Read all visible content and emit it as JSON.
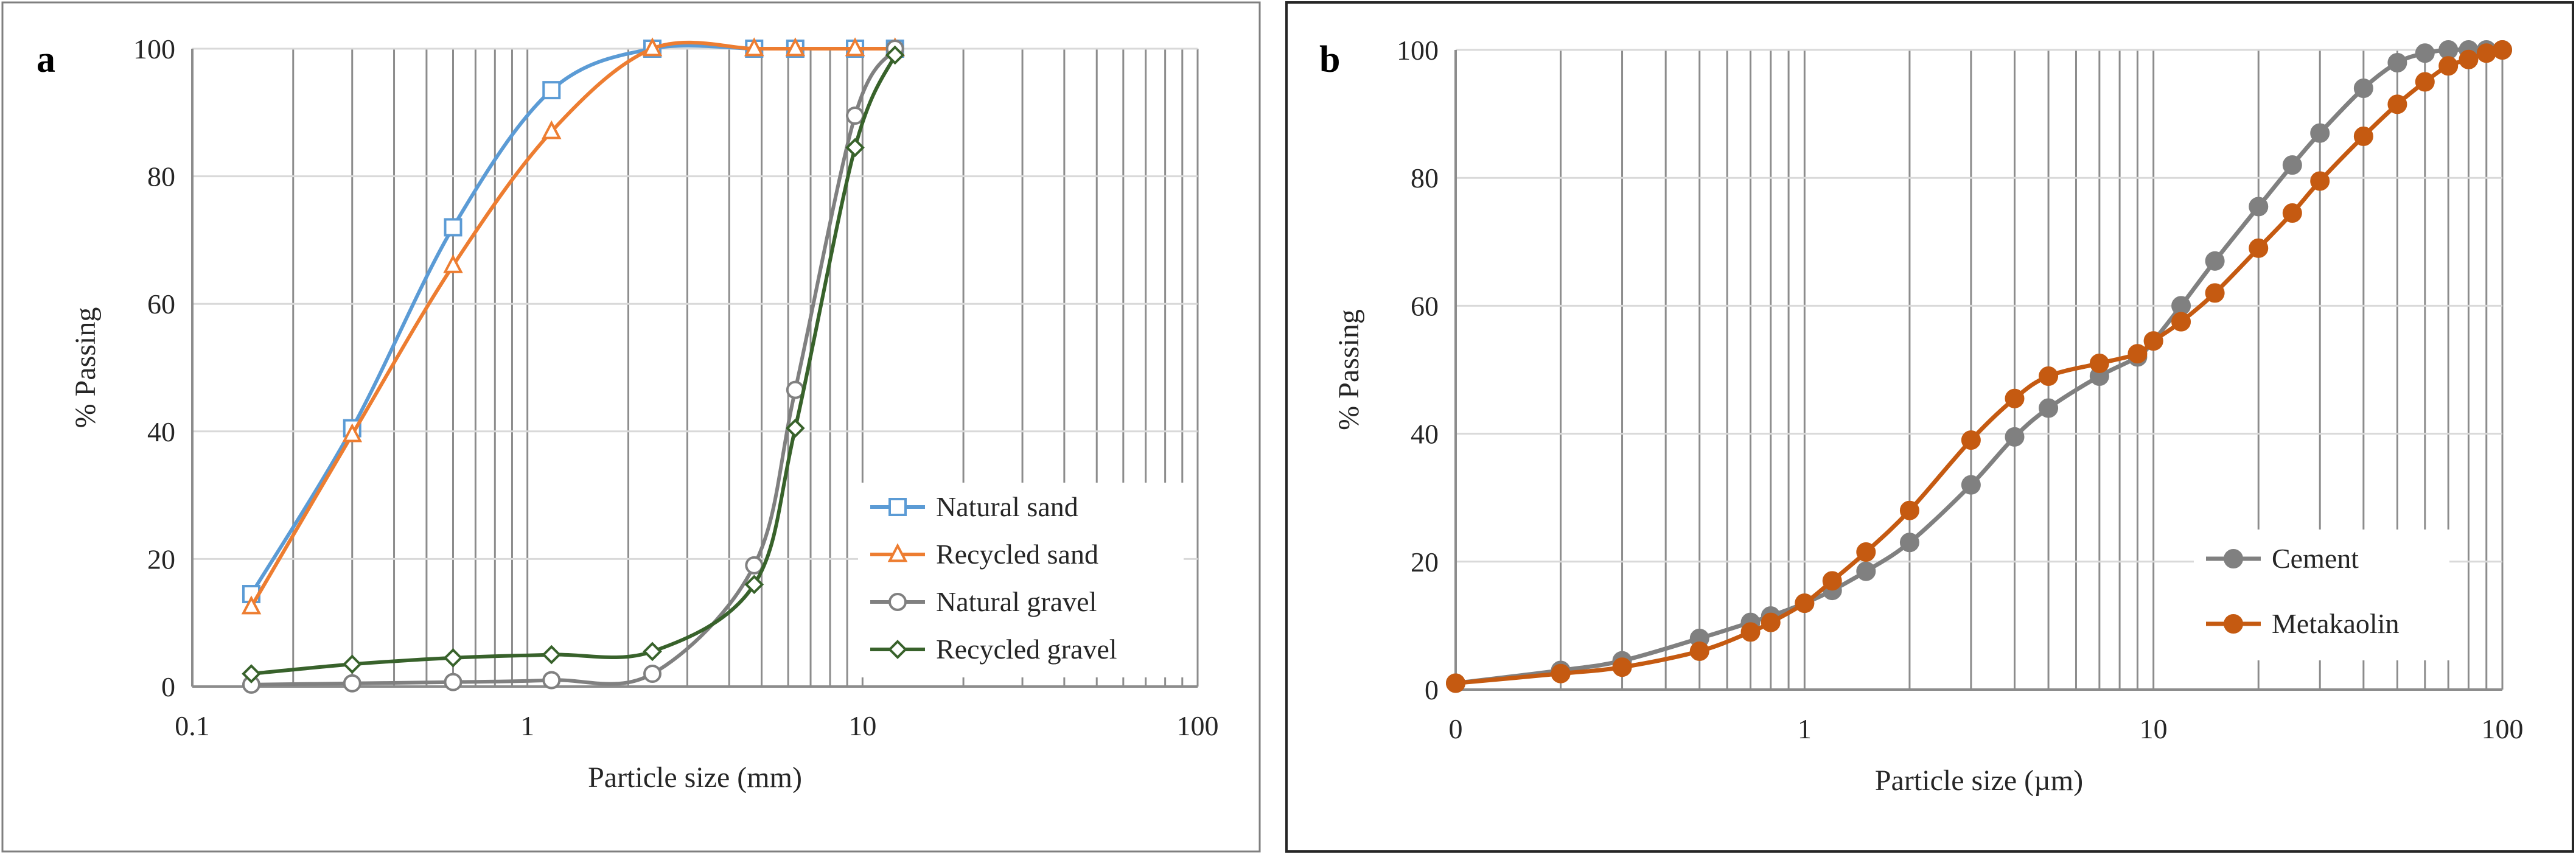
{
  "figure": {
    "panels": [
      {
        "label": "a",
        "legend_position": "bottom-right",
        "grid": true
      },
      {
        "label": "b",
        "legend_position": "bottom-right",
        "grid": true
      }
    ]
  },
  "chart_data": [
    {
      "type": "line",
      "panel": "a",
      "xscale": "log",
      "xlabel": "Particle size (mm)",
      "ylabel": "% Passing",
      "xlim": [
        0.1,
        100
      ],
      "ylim": [
        0,
        100
      ],
      "xticks": [
        0.1,
        1,
        10,
        100
      ],
      "xtick_labels": [
        "0.1",
        "1",
        "10",
        "100"
      ],
      "yticks": [
        0,
        20,
        40,
        60,
        80,
        100
      ],
      "ytick_labels": [
        "0",
        "20",
        "40",
        "60",
        "80",
        "100"
      ],
      "series": [
        {
          "name": "Natural sand",
          "color": "#5b9bd5",
          "marker": "square",
          "x": [
            0.15,
            0.3,
            0.6,
            1.18,
            2.36,
            4.75,
            6.3,
            9.5,
            12.5
          ],
          "y": [
            14.5,
            40.5,
            72,
            93.5,
            100,
            100,
            100,
            100,
            100
          ]
        },
        {
          "name": "Recycled sand",
          "color": "#ed7d31",
          "marker": "triangle",
          "x": [
            0.15,
            0.3,
            0.6,
            1.18,
            2.36,
            4.75,
            6.3,
            9.5,
            12.5
          ],
          "y": [
            12.5,
            39.5,
            66,
            87,
            100,
            100,
            100,
            100,
            100
          ]
        },
        {
          "name": "Natural gravel",
          "color": "#808080",
          "marker": "circle",
          "x": [
            0.15,
            0.3,
            0.6,
            1.18,
            2.36,
            4.75,
            6.3,
            9.5,
            12.5
          ],
          "y": [
            0.3,
            0.5,
            0.7,
            1,
            2,
            19,
            46.5,
            89.5,
            100
          ]
        },
        {
          "name": "Recycled gravel",
          "color": "#38622b",
          "marker": "diamond",
          "x": [
            0.15,
            0.3,
            0.6,
            1.18,
            2.36,
            4.75,
            6.3,
            9.5,
            12.5
          ],
          "y": [
            2,
            3.5,
            4.5,
            5,
            5.5,
            16,
            40.5,
            84.5,
            99
          ]
        }
      ]
    },
    {
      "type": "line",
      "panel": "b",
      "xscale": "log",
      "xlabel": "Particle size (µm)",
      "ylabel": "% Passing",
      "xlim": [
        0.1,
        100
      ],
      "ylim": [
        0,
        100
      ],
      "xticks": [
        0.1,
        1,
        10,
        100
      ],
      "xtick_labels": [
        "0",
        "1",
        "10",
        "100"
      ],
      "yticks": [
        0,
        20,
        40,
        60,
        80,
        100
      ],
      "ytick_labels": [
        "0",
        "20",
        "40",
        "60",
        "80",
        "100"
      ],
      "series": [
        {
          "name": "Cement",
          "color": "#808080",
          "marker": "circle",
          "x": [
            0.1,
            0.2,
            0.3,
            0.5,
            0.7,
            0.8,
            1,
            1.2,
            1.5,
            2,
            3,
            4,
            5,
            7,
            9,
            10,
            12,
            15,
            20,
            25,
            30,
            40,
            50,
            60,
            70,
            80,
            90,
            100
          ],
          "y": [
            1,
            3,
            4.5,
            8,
            10.5,
            11.5,
            13.5,
            15.5,
            18.5,
            23,
            32,
            39.5,
            44,
            49,
            52,
            54.5,
            60,
            67,
            75.5,
            82,
            87,
            94,
            98,
            99.5,
            100,
            100,
            100,
            100
          ]
        },
        {
          "name": "Metakaolin",
          "color": "#c55a11",
          "marker": "circle",
          "x": [
            0.1,
            0.2,
            0.3,
            0.5,
            0.7,
            0.8,
            1,
            1.2,
            1.5,
            2,
            3,
            4,
            5,
            7,
            9,
            10,
            12,
            15,
            20,
            25,
            30,
            40,
            50,
            60,
            70,
            80,
            90,
            100
          ],
          "y": [
            1,
            2.5,
            3.5,
            6,
            9,
            10.5,
            13.5,
            17,
            21.5,
            28,
            39,
            45.5,
            49,
            51,
            52.5,
            54.5,
            57.5,
            62,
            69,
            74.5,
            79.5,
            86.5,
            91.5,
            95,
            97.5,
            98.5,
            99.5,
            100
          ]
        }
      ]
    }
  ]
}
